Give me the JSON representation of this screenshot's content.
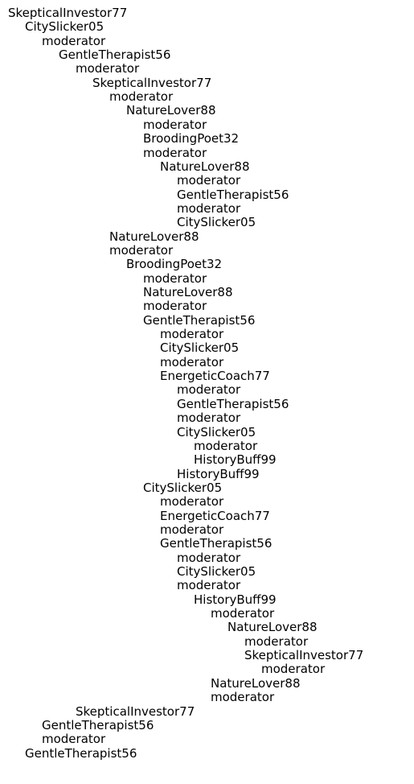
{
  "nodes": [
    {
      "label": "SkepticalInvestor77",
      "depth": 0
    },
    {
      "label": "CitySlicker05",
      "depth": 1
    },
    {
      "label": "moderator",
      "depth": 2
    },
    {
      "label": "GentleTherapist56",
      "depth": 3
    },
    {
      "label": "moderator",
      "depth": 4
    },
    {
      "label": "SkepticalInvestor77",
      "depth": 5
    },
    {
      "label": "moderator",
      "depth": 6
    },
    {
      "label": "NatureLover88",
      "depth": 7
    },
    {
      "label": "moderator",
      "depth": 8
    },
    {
      "label": "BroodingPoet32",
      "depth": 8
    },
    {
      "label": "moderator",
      "depth": 8
    },
    {
      "label": "NatureLover88",
      "depth": 9
    },
    {
      "label": "moderator",
      "depth": 10
    },
    {
      "label": "GentleTherapist56",
      "depth": 10
    },
    {
      "label": "moderator",
      "depth": 10
    },
    {
      "label": "CitySlicker05",
      "depth": 10
    },
    {
      "label": "NatureLover88",
      "depth": 6
    },
    {
      "label": "moderator",
      "depth": 6
    },
    {
      "label": "BroodingPoet32",
      "depth": 7
    },
    {
      "label": "moderator",
      "depth": 8
    },
    {
      "label": "NatureLover88",
      "depth": 8
    },
    {
      "label": "moderator",
      "depth": 8
    },
    {
      "label": "GentleTherapist56",
      "depth": 8
    },
    {
      "label": "moderator",
      "depth": 9
    },
    {
      "label": "CitySlicker05",
      "depth": 9
    },
    {
      "label": "moderator",
      "depth": 9
    },
    {
      "label": "EnergeticCoach77",
      "depth": 9
    },
    {
      "label": "moderator",
      "depth": 10
    },
    {
      "label": "GentleTherapist56",
      "depth": 10
    },
    {
      "label": "moderator",
      "depth": 10
    },
    {
      "label": "CitySlicker05",
      "depth": 10
    },
    {
      "label": "moderator",
      "depth": 11
    },
    {
      "label": "HistoryBuff99",
      "depth": 11
    },
    {
      "label": "HistoryBuff99",
      "depth": 10
    },
    {
      "label": "CitySlicker05",
      "depth": 8
    },
    {
      "label": "moderator",
      "depth": 9
    },
    {
      "label": "EnergeticCoach77",
      "depth": 9
    },
    {
      "label": "moderator",
      "depth": 9
    },
    {
      "label": "GentleTherapist56",
      "depth": 9
    },
    {
      "label": "moderator",
      "depth": 10
    },
    {
      "label": "CitySlicker05",
      "depth": 10
    },
    {
      "label": "moderator",
      "depth": 10
    },
    {
      "label": "HistoryBuff99",
      "depth": 11
    },
    {
      "label": "moderator",
      "depth": 12
    },
    {
      "label": "NatureLover88",
      "depth": 13
    },
    {
      "label": "moderator",
      "depth": 14
    },
    {
      "label": "SkepticalInvestor77",
      "depth": 14
    },
    {
      "label": "moderator",
      "depth": 15
    },
    {
      "label": "NatureLover88",
      "depth": 12
    },
    {
      "label": "moderator",
      "depth": 12
    },
    {
      "label": "SkepticalInvestor77",
      "depth": 4
    },
    {
      "label": "GentleTherapist56",
      "depth": 2
    },
    {
      "label": "moderator",
      "depth": 2
    },
    {
      "label": "GentleTherapist56",
      "depth": 1
    }
  ]
}
